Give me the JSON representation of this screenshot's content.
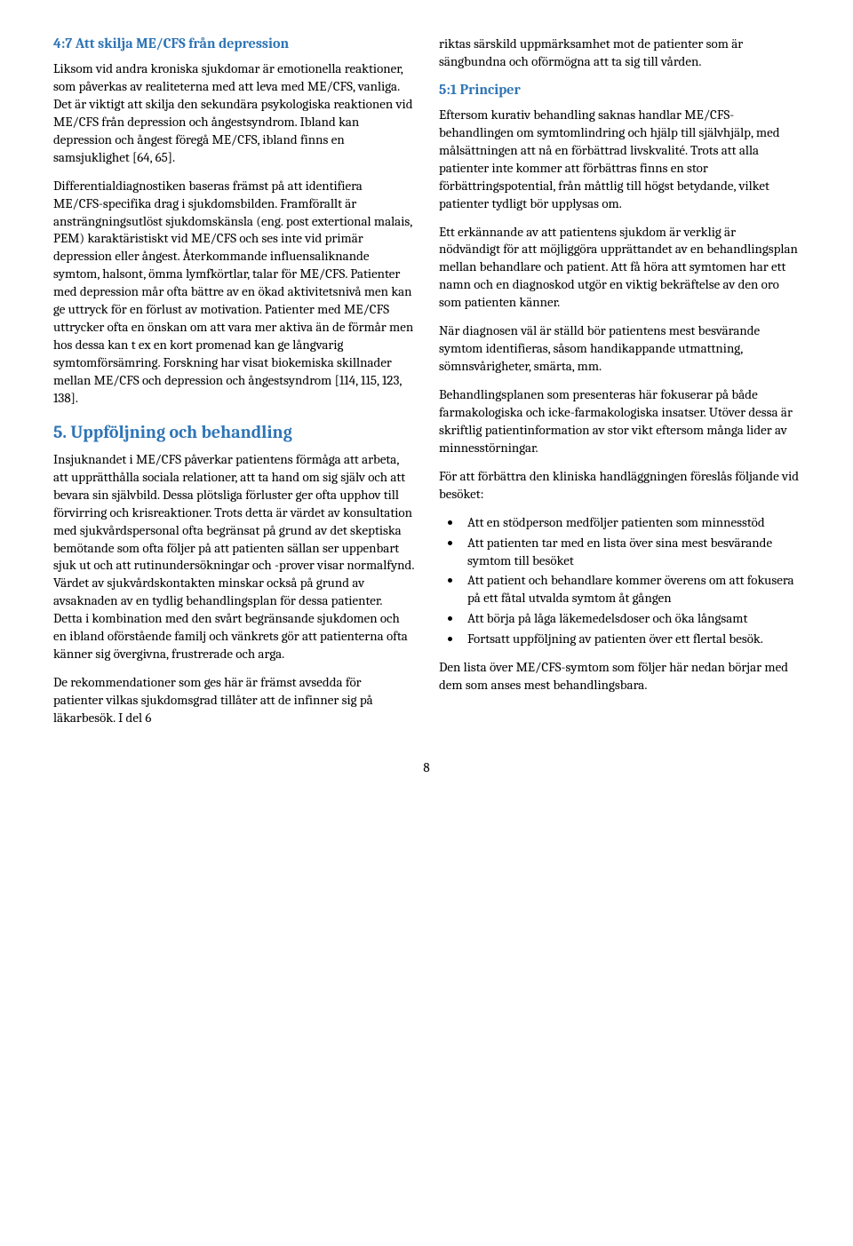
{
  "left_column": {
    "heading_4_7": "4:7 Att skilja ME/CFS från depression",
    "para_4_7_1": "Liksom vid andra kroniska sjukdomar är emotionella reaktioner, som påverkas av realiteterna med att leva med ME/CFS, vanliga. Det är viktigt att skilja den sekundära psykologiska reaktionen vid ME/CFS från depression och ångestsyndrom. Ibland kan depression och ångest föregå ME/CFS, ibland finns en samsjuklighet [64, 65].",
    "para_4_7_2": "Differentialdiagnostiken baseras främst på att identifiera ME/CFS-specifika drag i sjukdomsbilden. Framförallt är ansträngningsutlöst sjukdomskänsla (eng. post extertional malais, PEM) karaktäristiskt vid ME/CFS och ses inte vid primär depression eller ångest. Återkommande influensaliknande symtom, halsont, ömma lymfkörtlar, talar för ME/CFS. Patienter med depression mår ofta bättre av en ökad aktivitetsnivå men kan ge uttryck för en förlust av motivation. Patienter med ME/CFS uttrycker ofta en önskan om att vara mer aktiva än de förmår men hos dessa kan t ex en kort promenad kan ge långvarig symtomförsämring. Forskning har visat biokemiska skillnader mellan ME/CFS och depression och ångestsyndrom [114, 115, 123, 138].",
    "heading_5": "5. Uppföljning och behandling",
    "para_5_1": "Insjuknandet i ME/CFS påverkar patientens förmåga att arbeta, att upprätthålla sociala relationer, att ta hand om sig själv och att bevara sin självbild. Dessa plötsliga förluster ger ofta upphov till förvirring och krisreaktioner. Trots detta är värdet av konsultation med sjukvårdspersonal ofta begränsat på grund av det skeptiska bemötande som ofta följer på att patienten sällan ser uppenbart sjuk ut och att rutinundersökningar och -prover visar normalfynd. Värdet av sjukvårdskontakten minskar också på grund av avsaknaden av en tydlig behandlingsplan för dessa patienter. Detta i kombination med den svårt begränsande sjukdomen och en ibland oförstående familj och vänkrets gör att patienterna ofta känner sig övergivna, frustrerade och arga.",
    "para_5_2": "De rekommendationer som ges här är främst avsedda för patienter vilkas sjukdomsgrad tillåter att de infinner sig på läkarbesök. I del 6"
  },
  "right_column": {
    "para_cont": "riktas särskild uppmärksamhet mot de patienter som är sängbundna och oförmögna att ta sig till vården.",
    "heading_5_1": "5:1 Principer",
    "para_5_1_1": "Eftersom kurativ behandling saknas handlar ME/CFS-behandlingen om symtomlindring och hjälp till självhjälp, med målsättningen att nå en förbättrad livskvalité. Trots att alla patienter inte kommer att förbättras finns en stor förbättringspotential, från måttlig till högst betydande, vilket patienter tydligt bör upplysas om.",
    "para_5_1_2": "Ett erkännande av att patientens sjukdom är verklig är nödvändigt för att möjliggöra upprättandet av en behandlingsplan mellan behandlare och patient. Att få höra att symtomen har ett namn och en diagnoskod utgör en viktig bekräftelse av den oro som patienten känner.",
    "para_5_1_3": "När diagnosen väl är ställd bör patientens mest besvärande symtom identifieras, såsom handikappande utmattning, sömnsvårigheter, smärta, mm.",
    "para_5_1_4": "Behandlingsplanen som presenteras här fokuserar på både farmakologiska och icke-farmakologiska insatser. Utöver dessa är skriftlig patientinformation av stor vikt eftersom många lider av minnesstörningar.",
    "para_5_1_5": "För att förbättra den kliniska handläggningen föreslås följande vid besöket:",
    "bullets": [
      "Att en stödperson medföljer patienten som minnesstöd",
      "Att patienten tar med en lista över sina mest besvärande symtom till besöket",
      "Att patient och behandlare kommer överens om att fokusera på ett fåtal utvalda symtom åt gången",
      "Att börja på låga läkemedelsdoser och öka långsamt",
      "Fortsatt uppföljning av patienten över ett flertal besök."
    ],
    "para_5_1_6": "Den lista över ME/CFS-symtom som följer här nedan börjar med dem som anses mest behandlingsbara."
  },
  "page_number": "8",
  "colors": {
    "heading_color": "#2e74b5",
    "text_color": "#000000",
    "background_color": "#ffffff"
  }
}
